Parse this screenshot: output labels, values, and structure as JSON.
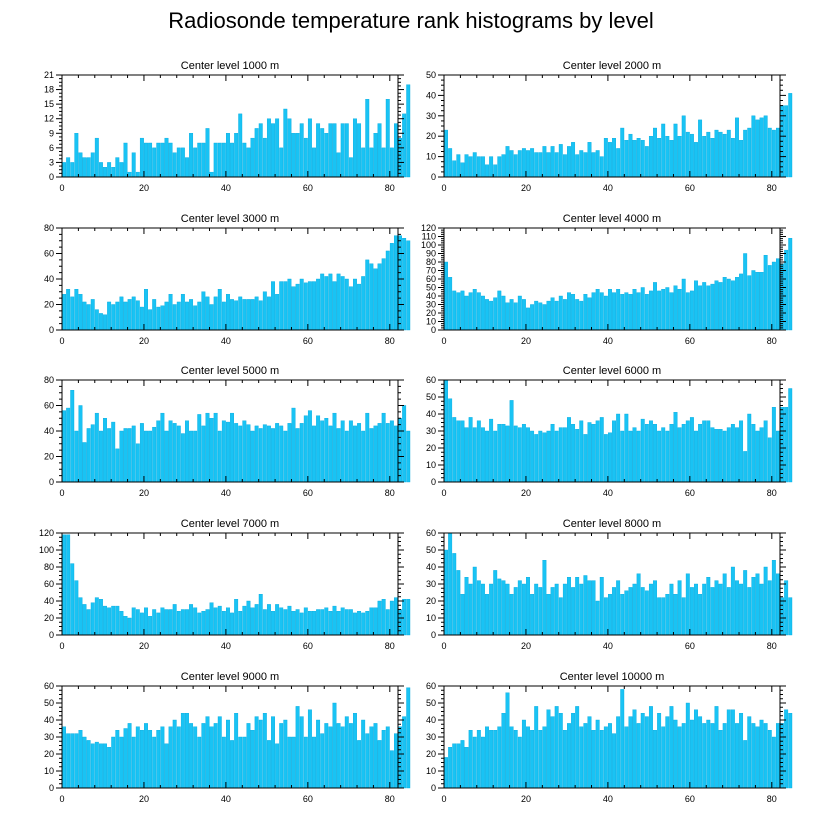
{
  "figure": {
    "title": "Radiosonde temperature rank histograms by level",
    "bar_color": "#19C3F4",
    "bar_edge_color": "#00A9DE",
    "frame_color": "#000000"
  },
  "chart_data": [
    {
      "type": "bar",
      "title": "Center level 1000 m",
      "xlabel": "",
      "ylabel": "",
      "xlim": [
        0,
        82
      ],
      "ylim": [
        0,
        21
      ],
      "xticks": [
        0,
        20,
        40,
        60,
        80
      ],
      "yticks": [
        0,
        3,
        6,
        9,
        12,
        15,
        18,
        21
      ],
      "grid": false,
      "values": [
        3,
        4,
        3,
        9,
        5,
        4,
        4,
        5,
        8,
        3,
        2,
        3,
        2,
        4,
        3,
        7,
        1,
        5,
        1,
        8,
        7,
        7,
        6,
        7,
        7,
        8,
        7,
        5,
        6,
        6,
        4,
        9,
        6,
        7,
        7,
        10,
        1,
        7,
        7,
        7,
        9,
        7,
        9,
        13,
        7,
        6,
        8,
        10,
        11,
        8,
        12,
        11,
        12,
        6,
        14,
        12,
        9,
        9,
        11,
        8,
        12,
        6,
        11,
        10,
        9,
        11,
        11,
        5,
        11,
        11,
        4,
        12,
        11,
        6,
        16,
        6,
        9,
        11,
        6,
        16,
        6,
        11,
        8,
        13,
        19
      ]
    },
    {
      "type": "bar",
      "title": "Center level 2000 m",
      "xlabel": "",
      "ylabel": "",
      "xlim": [
        0,
        82
      ],
      "ylim": [
        0,
        50
      ],
      "xticks": [
        0,
        20,
        40,
        60,
        80
      ],
      "yticks": [
        0,
        10,
        20,
        30,
        40,
        50
      ],
      "grid": false,
      "values": [
        23,
        14,
        8,
        11,
        7,
        11,
        10,
        12,
        10,
        10,
        6,
        10,
        6,
        10,
        11,
        15,
        13,
        11,
        13,
        14,
        13,
        14,
        12,
        12,
        15,
        12,
        15,
        12,
        16,
        11,
        15,
        17,
        11,
        13,
        12,
        17,
        12,
        13,
        10,
        19,
        17,
        19,
        14,
        24,
        18,
        21,
        18,
        19,
        18,
        15,
        20,
        24,
        19,
        26,
        20,
        18,
        26,
        20,
        30,
        22,
        21,
        17,
        28,
        20,
        22,
        19,
        23,
        22,
        21,
        23,
        19,
        29,
        18,
        23,
        24,
        30,
        28,
        29,
        30,
        24,
        23,
        24,
        35,
        35,
        41
      ]
    },
    {
      "type": "bar",
      "title": "Center level 3000 m",
      "xlabel": "",
      "ylabel": "",
      "xlim": [
        0,
        82
      ],
      "ylim": [
        0,
        80
      ],
      "xticks": [
        0,
        20,
        40,
        60,
        80
      ],
      "yticks": [
        0,
        20,
        40,
        60,
        80
      ],
      "grid": false,
      "values": [
        28,
        32,
        26,
        32,
        28,
        22,
        20,
        24,
        16,
        13,
        12,
        22,
        20,
        22,
        26,
        22,
        24,
        26,
        23,
        18,
        32,
        16,
        24,
        18,
        19,
        22,
        28,
        20,
        22,
        28,
        22,
        24,
        19,
        22,
        30,
        26,
        20,
        26,
        32,
        22,
        28,
        24,
        23,
        26,
        24,
        24,
        24,
        26,
        23,
        30,
        26,
        38,
        28,
        38,
        38,
        40,
        34,
        36,
        40,
        37,
        38,
        38,
        40,
        44,
        42,
        44,
        38,
        44,
        42,
        40,
        34,
        40,
        36,
        42,
        55,
        52,
        48,
        52,
        56,
        62,
        68,
        74,
        74,
        72,
        70
      ]
    },
    {
      "type": "bar",
      "title": "Center level 4000 m",
      "xlabel": "",
      "ylabel": "",
      "xlim": [
        0,
        82
      ],
      "ylim": [
        0,
        120
      ],
      "xticks": [
        0,
        20,
        40,
        60,
        80
      ],
      "yticks": [
        0,
        10,
        20,
        30,
        40,
        50,
        60,
        70,
        80,
        90,
        100,
        110,
        120
      ],
      "grid": false,
      "values": [
        80,
        62,
        46,
        44,
        46,
        40,
        44,
        48,
        44,
        40,
        36,
        34,
        38,
        46,
        40,
        32,
        36,
        32,
        40,
        36,
        26,
        30,
        34,
        32,
        30,
        34,
        38,
        34,
        40,
        36,
        44,
        42,
        36,
        34,
        42,
        38,
        44,
        48,
        44,
        40,
        48,
        44,
        48,
        42,
        44,
        42,
        48,
        44,
        50,
        42,
        46,
        56,
        46,
        48,
        50,
        44,
        52,
        48,
        60,
        44,
        46,
        58,
        52,
        56,
        52,
        54,
        58,
        56,
        62,
        60,
        58,
        62,
        66,
        90,
        64,
        70,
        68,
        68,
        88,
        76,
        80,
        84,
        78,
        94,
        108
      ]
    },
    {
      "type": "bar",
      "title": "Center level 5000 m",
      "xlabel": "",
      "ylabel": "",
      "xlim": [
        0,
        82
      ],
      "ylim": [
        0,
        80
      ],
      "xticks": [
        0,
        20,
        40,
        60,
        80
      ],
      "yticks": [
        0,
        20,
        40,
        60,
        80
      ],
      "grid": false,
      "values": [
        56,
        58,
        72,
        40,
        60,
        31,
        42,
        45,
        54,
        40,
        50,
        42,
        47,
        26,
        40,
        42,
        42,
        44,
        30,
        46,
        40,
        40,
        43,
        48,
        54,
        40,
        48,
        46,
        44,
        38,
        48,
        40,
        40,
        53,
        44,
        54,
        50,
        54,
        40,
        48,
        47,
        54,
        46,
        44,
        48,
        45,
        40,
        44,
        42,
        45,
        44,
        42,
        46,
        44,
        40,
        46,
        58,
        42,
        46,
        52,
        56,
        44,
        52,
        48,
        50,
        44,
        54,
        42,
        48,
        40,
        48,
        44,
        46,
        40,
        54,
        42,
        44,
        46,
        54,
        46,
        48,
        44,
        50,
        60,
        40
      ]
    },
    {
      "type": "bar",
      "title": "Center level 6000 m",
      "xlabel": "",
      "ylabel": "",
      "xlim": [
        0,
        82
      ],
      "ylim": [
        0,
        60
      ],
      "xticks": [
        0,
        20,
        40,
        60,
        80
      ],
      "yticks": [
        0,
        10,
        20,
        30,
        40,
        50,
        60
      ],
      "grid": false,
      "values": [
        60,
        49,
        38,
        36,
        36,
        32,
        38,
        32,
        36,
        32,
        30,
        37,
        30,
        34,
        34,
        33,
        48,
        33,
        32,
        34,
        32,
        30,
        28,
        30,
        29,
        30,
        34,
        30,
        32,
        32,
        38,
        34,
        31,
        36,
        28,
        35,
        34,
        36,
        38,
        28,
        29,
        36,
        40,
        30,
        40,
        30,
        32,
        30,
        37,
        34,
        36,
        34,
        30,
        32,
        30,
        34,
        41,
        32,
        34,
        36,
        38,
        30,
        34,
        36,
        36,
        32,
        31,
        31,
        30,
        32,
        34,
        32,
        36,
        18,
        40,
        34,
        30,
        32,
        36,
        26,
        44,
        30,
        44,
        44,
        55
      ]
    },
    {
      "type": "bar",
      "title": "Center level 7000 m",
      "xlabel": "",
      "ylabel": "",
      "xlim": [
        0,
        82
      ],
      "ylim": [
        0,
        120
      ],
      "xticks": [
        0,
        20,
        40,
        60,
        80
      ],
      "yticks": [
        0,
        20,
        40,
        60,
        80,
        100,
        120
      ],
      "grid": false,
      "values": [
        118,
        118,
        84,
        64,
        44,
        36,
        30,
        38,
        44,
        42,
        34,
        32,
        34,
        34,
        28,
        22,
        20,
        32,
        30,
        26,
        32,
        22,
        30,
        26,
        32,
        30,
        30,
        36,
        28,
        30,
        30,
        36,
        32,
        26,
        28,
        30,
        38,
        32,
        34,
        28,
        32,
        26,
        42,
        28,
        34,
        40,
        32,
        36,
        48,
        30,
        36,
        28,
        36,
        32,
        30,
        34,
        28,
        30,
        26,
        32,
        28,
        28,
        30,
        30,
        32,
        28,
        34,
        28,
        32,
        30,
        30,
        26,
        28,
        26,
        28,
        32,
        32,
        40,
        42,
        30,
        40,
        44,
        30,
        42,
        42
      ]
    },
    {
      "type": "bar",
      "title": "Center level 8000 m",
      "xlabel": "",
      "ylabel": "",
      "xlim": [
        0,
        82
      ],
      "ylim": [
        0,
        60
      ],
      "xticks": [
        0,
        20,
        40,
        60,
        80
      ],
      "yticks": [
        0,
        10,
        20,
        30,
        40,
        50,
        60
      ],
      "grid": false,
      "values": [
        50,
        60,
        48,
        38,
        24,
        34,
        30,
        40,
        32,
        30,
        24,
        30,
        38,
        33,
        32,
        30,
        24,
        28,
        32,
        30,
        34,
        24,
        30,
        28,
        44,
        24,
        28,
        30,
        22,
        30,
        34,
        28,
        34,
        30,
        35,
        32,
        32,
        20,
        34,
        22,
        24,
        28,
        32,
        24,
        26,
        28,
        30,
        36,
        28,
        26,
        30,
        32,
        22,
        22,
        24,
        30,
        24,
        32,
        22,
        36,
        28,
        30,
        24,
        30,
        34,
        28,
        32,
        30,
        36,
        28,
        40,
        32,
        30,
        38,
        28,
        34,
        36,
        30,
        40,
        32,
        44,
        36,
        22,
        32,
        22
      ]
    },
    {
      "type": "bar",
      "title": "Center level 9000 m",
      "xlabel": "",
      "ylabel": "",
      "xlim": [
        0,
        82
      ],
      "ylim": [
        0,
        60
      ],
      "xticks": [
        0,
        20,
        40,
        60,
        80
      ],
      "yticks": [
        0,
        10,
        20,
        30,
        40,
        50,
        60
      ],
      "grid": false,
      "values": [
        36,
        32,
        32,
        32,
        34,
        30,
        28,
        26,
        27,
        26,
        26,
        24,
        30,
        34,
        30,
        35,
        38,
        30,
        36,
        34,
        38,
        34,
        30,
        34,
        36,
        26,
        36,
        40,
        36,
        44,
        44,
        38,
        36,
        30,
        38,
        42,
        36,
        38,
        42,
        30,
        40,
        28,
        44,
        30,
        30,
        38,
        34,
        42,
        40,
        44,
        28,
        42,
        26,
        38,
        40,
        30,
        30,
        48,
        42,
        30,
        46,
        30,
        40,
        32,
        38,
        36,
        50,
        38,
        36,
        42,
        38,
        44,
        28,
        40,
        32,
        36,
        38,
        28,
        34,
        36,
        22,
        32,
        36,
        42,
        59
      ]
    },
    {
      "type": "bar",
      "title": "Center level 10000 m",
      "xlabel": "",
      "ylabel": "",
      "xlim": [
        0,
        82
      ],
      "ylim": [
        0,
        60
      ],
      "xticks": [
        0,
        20,
        40,
        60,
        80
      ],
      "yticks": [
        0,
        10,
        20,
        30,
        40,
        50,
        60
      ],
      "grid": false,
      "values": [
        18,
        24,
        26,
        26,
        28,
        24,
        34,
        30,
        34,
        30,
        36,
        34,
        34,
        36,
        44,
        56,
        36,
        34,
        30,
        40,
        36,
        34,
        48,
        34,
        36,
        46,
        42,
        48,
        44,
        34,
        38,
        44,
        48,
        36,
        38,
        42,
        34,
        40,
        34,
        36,
        38,
        32,
        42,
        58,
        36,
        42,
        46,
        38,
        44,
        42,
        48,
        34,
        44,
        36,
        42,
        48,
        40,
        36,
        38,
        50,
        40,
        46,
        42,
        38,
        40,
        38,
        48,
        34,
        38,
        46,
        46,
        38,
        44,
        28,
        42,
        38,
        36,
        40,
        38,
        34,
        30,
        38,
        38,
        46,
        44
      ]
    }
  ]
}
